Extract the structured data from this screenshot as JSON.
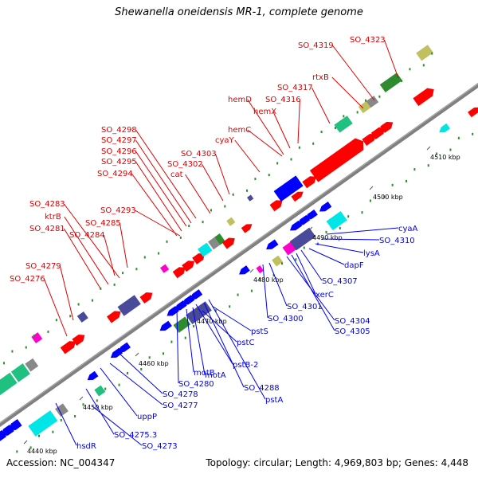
{
  "title": "Shewanella oneidensis MR-1, complete genome",
  "footer": {
    "accession": "Accession: NC_004347",
    "summary": "Topology: circular; Length: 4,969,803 bp; Genes: 4,448"
  },
  "scale_ticks": [
    "4440 kbp",
    "4450 kbp",
    "4460 kbp",
    "4470 kbp",
    "4480 kbp",
    "4490 kbp",
    "4500 kbp",
    "4510 kbp"
  ],
  "labels_top": [
    "SO_4276",
    "SO_4279",
    "SO_4281",
    "ktrB",
    "SO_4283",
    "SO_4284",
    "SO_4285",
    "SO_4293",
    "SO_4294",
    "SO_4295",
    "SO_4296",
    "SO_4297",
    "SO_4298",
    "cat",
    "SO_4302",
    "SO_4303",
    "cyaY",
    "hemC",
    "hemD",
    "hemX",
    "SO_4316",
    "SO_4317",
    "rtxB",
    "SO_4319",
    "SO_4323"
  ],
  "labels_bottom": [
    "hsdR",
    "SO_4273",
    "SO_4275.3",
    "uppP",
    "SO_4277",
    "SO_4278",
    "SO_4280",
    "motB",
    "motA",
    "pstB-2",
    "SO_4288",
    "pstA",
    "pstC",
    "pstS",
    "SO_4300",
    "SO_4301",
    "SO_4304",
    "SO_4305",
    "xerC",
    "SO_4307",
    "dapF",
    "lysA",
    "SO_4310",
    "cyaA"
  ],
  "colors": {
    "forward_label": "#e00000",
    "reverse_label": "#0000ee",
    "backbone": "#808080",
    "cds_red": "#ff0000",
    "cds_blue": "#0000ff",
    "cds_purple": "#4a4a9a",
    "cds_green": "#2e8b2e",
    "cds_cyan": "#00e6e6",
    "cds_teal": "#20c080",
    "cds_magenta": "#ff00cc",
    "cds_olive": "#c0c060",
    "cds_gray": "#888888"
  }
}
